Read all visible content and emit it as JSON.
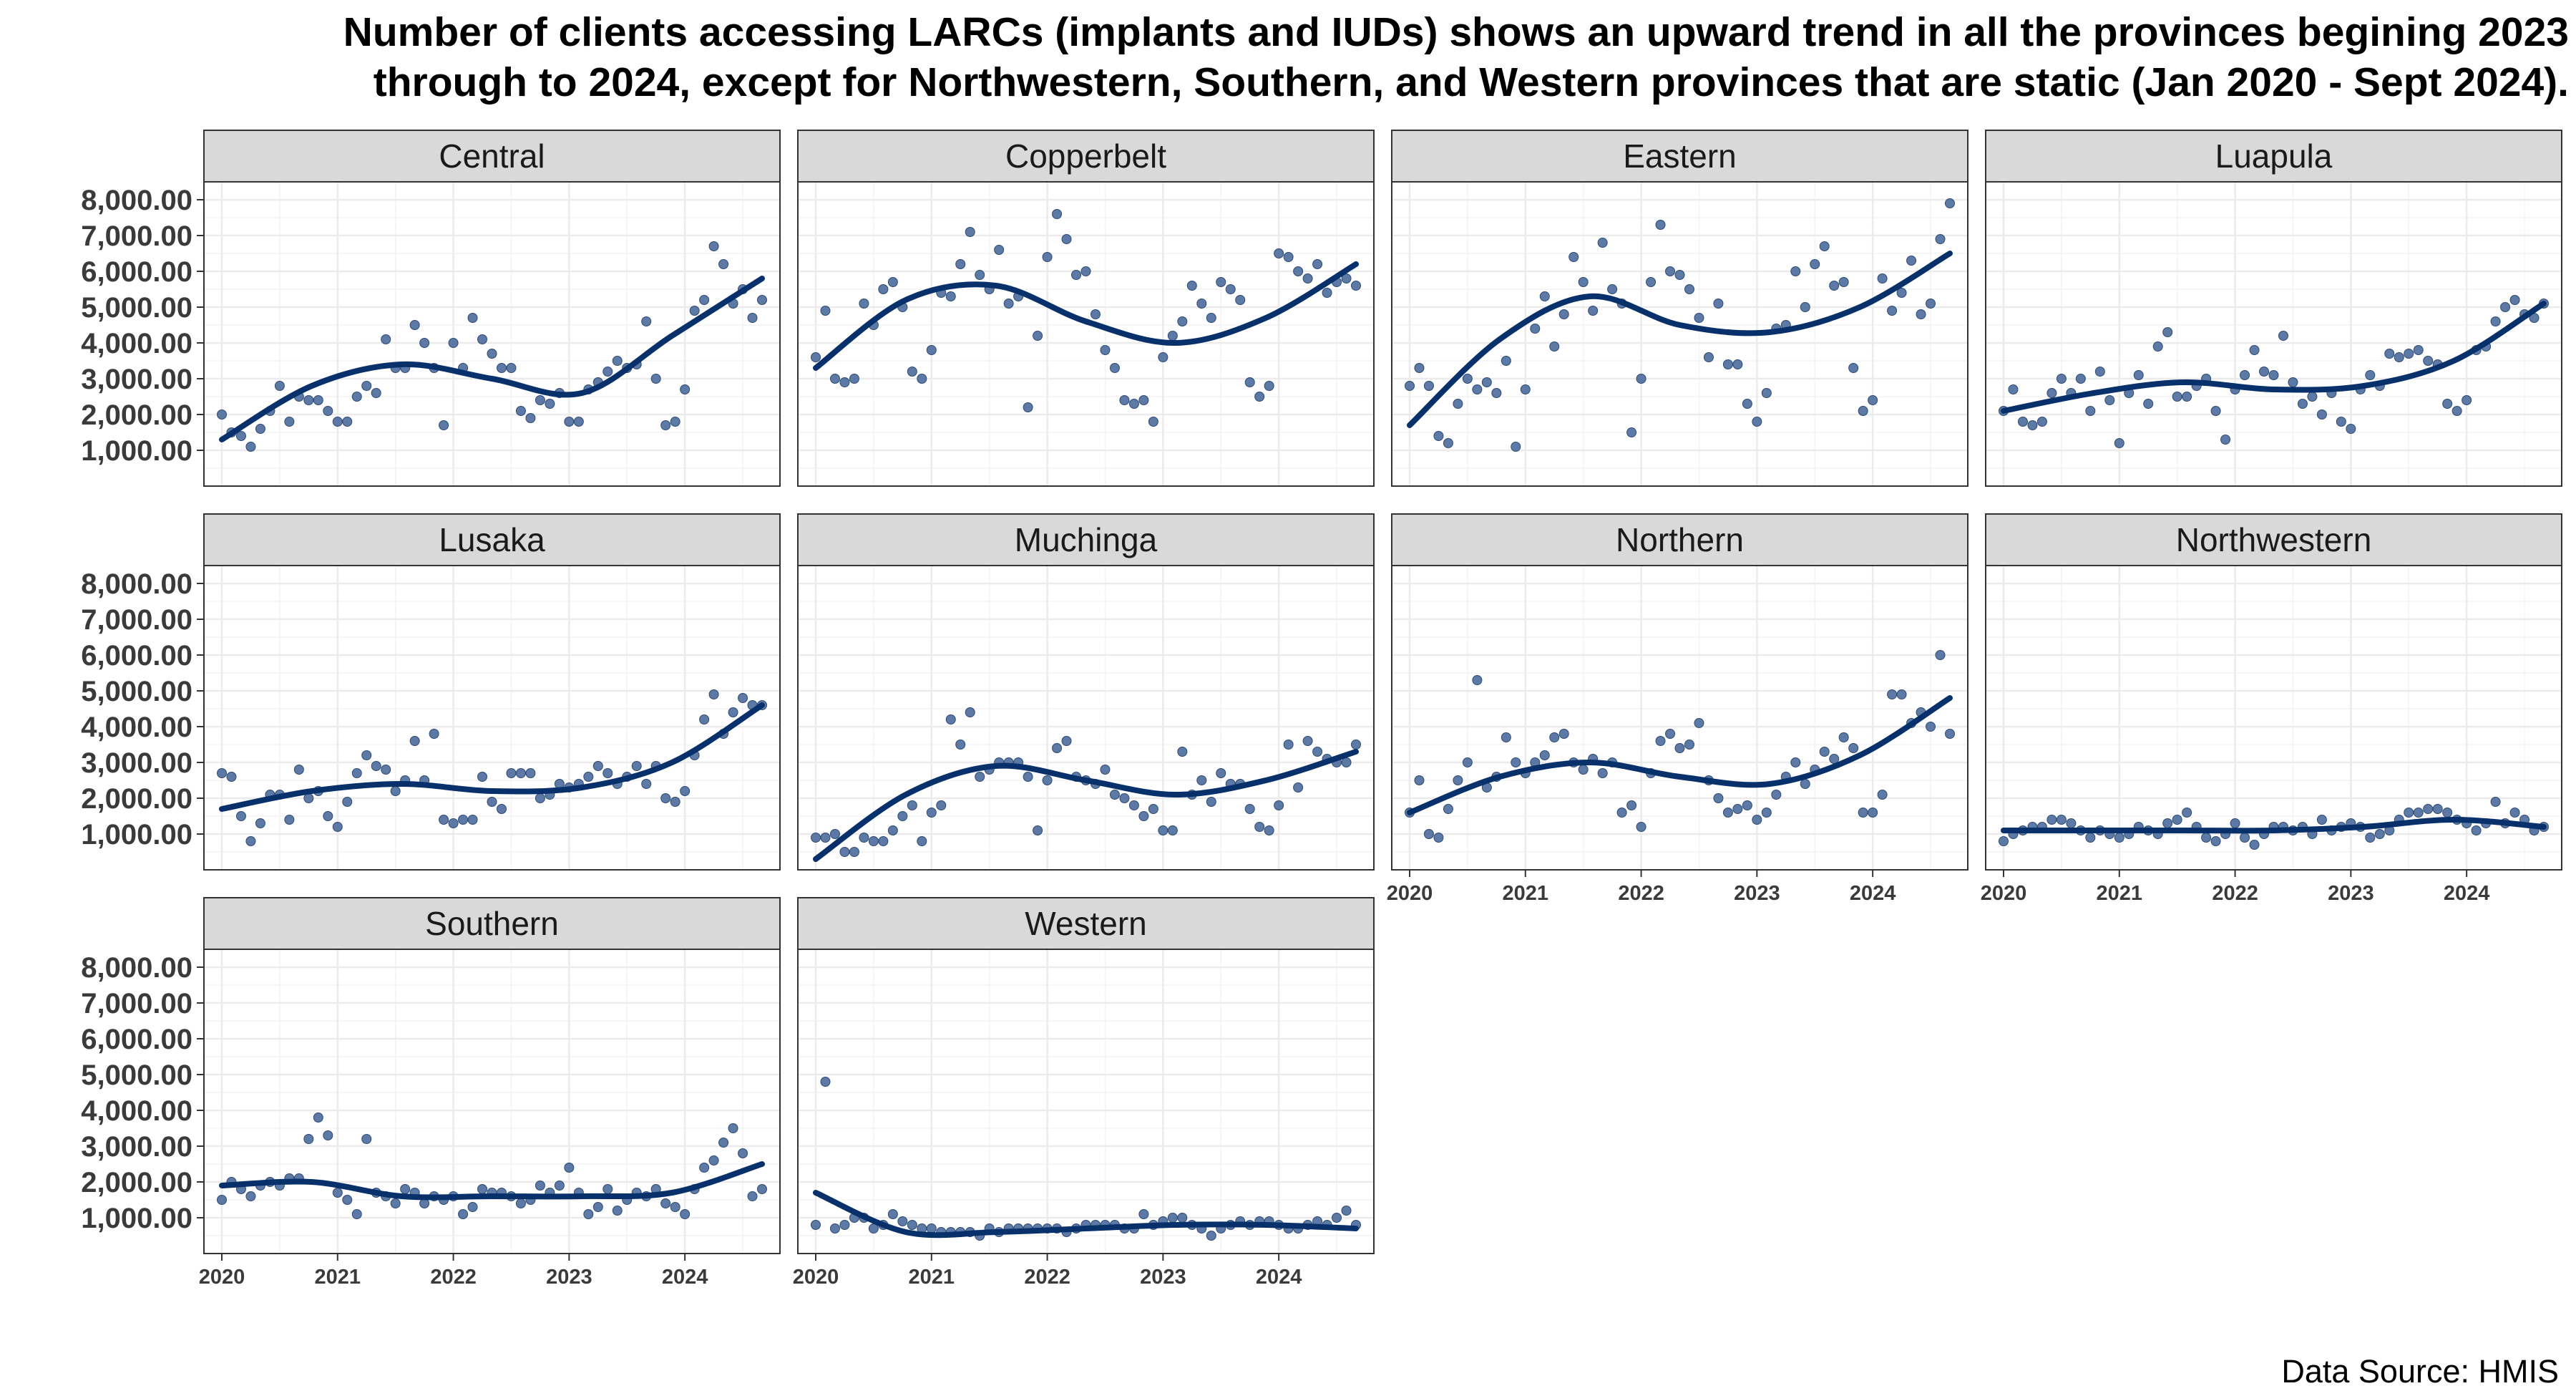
{
  "title": {
    "line1": "Number of clients accessing LARCs (implants and IUDs) shows an upward trend in all the provinces begining 2023",
    "line2": "through to 2024, except for Northwestern, Southern, and Western provinces that are static (Jan 2020 - Sept 2024)."
  },
  "source": "Data Source: HMIS",
  "colors": {
    "point": "#4a6c9b",
    "trend": "#08306b",
    "strip": "#d9d9d9",
    "grid": "#ebebeb"
  },
  "chart_data": {
    "type": "scatter",
    "y_ticks": [
      1000,
      2000,
      3000,
      4000,
      5000,
      6000,
      7000,
      8000
    ],
    "y_tick_labels": [
      "1,000.00",
      "2,000.00",
      "3,000.00",
      "4,000.00",
      "5,000.00",
      "6,000.00",
      "7,000.00",
      "8,000.00"
    ],
    "ylim": [
      0,
      8500
    ],
    "x_ticks": [
      2020,
      2021,
      2022,
      2023,
      2024
    ],
    "x_tick_labels": [
      "2020",
      "2021",
      "2022",
      "2023",
      "2024"
    ],
    "x_start": "2020-01",
    "x_end": "2024-09",
    "grid": true,
    "panels": [
      {
        "name": "Central",
        "values": [
          2000,
          1500,
          1400,
          1100,
          1600,
          2100,
          2800,
          1800,
          2500,
          2400,
          2400,
          2100,
          1800,
          1800,
          2500,
          2800,
          2600,
          4100,
          3300,
          3300,
          4500,
          4000,
          3300,
          1700,
          4000,
          3300,
          4700,
          4100,
          3700,
          3300,
          3300,
          2100,
          1900,
          2400,
          2300,
          2600,
          1800,
          1800,
          2700,
          2900,
          3200,
          3500,
          3300,
          3400,
          4600,
          3000,
          1700,
          1800,
          2700,
          4900,
          5200,
          6700,
          6200,
          5100,
          5500,
          4700,
          5200
        ],
        "trend": [
          1300,
          2800,
          3400,
          3000,
          2600,
          4200,
          5800
        ]
      },
      {
        "name": "Copperbelt",
        "values": [
          3600,
          4900,
          3000,
          2900,
          3000,
          5100,
          4500,
          5500,
          5700,
          5000,
          3200,
          3000,
          3800,
          5400,
          5300,
          6200,
          7100,
          5900,
          5500,
          6600,
          5100,
          5300,
          2200,
          4200,
          6400,
          7600,
          6900,
          5900,
          6000,
          4800,
          3800,
          3300,
          2400,
          2300,
          2400,
          1800,
          3600,
          4200,
          4600,
          5600,
          5100,
          4700,
          5700,
          5500,
          5200,
          2900,
          2500,
          2800,
          6500,
          6400,
          6000,
          5800,
          6200,
          5400,
          5700,
          5800,
          5600
        ],
        "trend": [
          3300,
          5200,
          5600,
          4600,
          4000,
          4700,
          6200
        ]
      },
      {
        "name": "Eastern",
        "values": [
          2800,
          3300,
          2800,
          1400,
          1200,
          2300,
          3000,
          2700,
          2900,
          2600,
          3500,
          1100,
          2700,
          4400,
          5300,
          3900,
          4800,
          6400,
          5700,
          4900,
          6800,
          5500,
          5100,
          1500,
          3000,
          5700,
          7300,
          6000,
          5900,
          5500,
          4700,
          3600,
          5100,
          3400,
          3400,
          2300,
          1800,
          2600,
          4400,
          4500,
          6000,
          5000,
          6200,
          6700,
          5600,
          5700,
          3300,
          2100,
          2400,
          5800,
          4900,
          5400,
          6300,
          4800,
          5100,
          6900,
          7900
        ],
        "trend": [
          1700,
          4100,
          5300,
          4500,
          4300,
          5000,
          6500
        ]
      },
      {
        "name": "Luapula",
        "values": [
          2100,
          2700,
          1800,
          1700,
          1800,
          2600,
          3000,
          2600,
          3000,
          2100,
          3200,
          2400,
          1200,
          2600,
          3100,
          2300,
          3900,
          4300,
          2500,
          2500,
          2800,
          3000,
          2100,
          1300,
          2700,
          3100,
          3800,
          3200,
          3100,
          4200,
          2900,
          2300,
          2500,
          2000,
          2600,
          1800,
          1600,
          2700,
          3100,
          2800,
          3700,
          3600,
          3700,
          3800,
          3500,
          3400,
          2300,
          2100,
          2400,
          3800,
          3900,
          4600,
          5000,
          5200,
          4800,
          4700,
          5100
        ],
        "trend": [
          2100,
          2600,
          2900,
          2700,
          2800,
          3500,
          5100
        ]
      },
      {
        "name": "Lusaka",
        "values": [
          2700,
          2600,
          1500,
          800,
          1300,
          2100,
          2100,
          1400,
          2800,
          2000,
          2200,
          1500,
          1200,
          1900,
          2700,
          3200,
          2900,
          2800,
          2200,
          2500,
          3600,
          2500,
          3800,
          1400,
          1300,
          1400,
          1400,
          2600,
          1900,
          1700,
          2700,
          2700,
          2700,
          2000,
          2100,
          2400,
          2300,
          2400,
          2600,
          2900,
          2700,
          2400,
          2600,
          2900,
          2400,
          2900,
          2000,
          1900,
          2200,
          3200,
          4200,
          4900,
          3800,
          4400,
          4800,
          4600,
          4600
        ],
        "trend": [
          1700,
          2200,
          2400,
          2200,
          2300,
          3000,
          4600
        ]
      },
      {
        "name": "Muchinga",
        "values": [
          900,
          900,
          1000,
          500,
          500,
          900,
          800,
          800,
          1100,
          1500,
          1800,
          800,
          1600,
          1800,
          4200,
          3500,
          4400,
          2600,
          2800,
          3000,
          3000,
          3000,
          2600,
          1100,
          2500,
          3400,
          3600,
          2600,
          2500,
          2400,
          2800,
          2100,
          2000,
          1800,
          1500,
          1700,
          1100,
          1100,
          3300,
          2100,
          2500,
          1900,
          2700,
          2400,
          2400,
          1700,
          1200,
          1100,
          1800,
          3500,
          2300,
          3600,
          3300,
          3100,
          3000,
          3000,
          3500
        ],
        "trend": [
          300,
          2100,
          2900,
          2500,
          2100,
          2500,
          3300
        ]
      },
      {
        "name": "Northern",
        "values": [
          1600,
          2500,
          1000,
          900,
          1700,
          2500,
          3000,
          5300,
          2300,
          2600,
          3700,
          3000,
          2700,
          3000,
          3200,
          3700,
          3800,
          3000,
          2800,
          3100,
          2700,
          3000,
          1600,
          1800,
          1200,
          2700,
          3600,
          3800,
          3400,
          3500,
          4100,
          2500,
          2000,
          1600,
          1700,
          1800,
          1400,
          1600,
          2100,
          2600,
          3000,
          2400,
          2800,
          3300,
          3100,
          3700,
          3400,
          1600,
          1600,
          2100,
          4900,
          4900,
          4100,
          4400,
          4000,
          6000,
          3800
        ],
        "trend": [
          1600,
          2600,
          3000,
          2600,
          2400,
          3200,
          4800
        ]
      },
      {
        "name": "Northwestern",
        "values": [
          800,
          1000,
          1100,
          1200,
          1200,
          1400,
          1400,
          1300,
          1100,
          900,
          1100,
          1000,
          900,
          1000,
          1200,
          1100,
          1000,
          1300,
          1400,
          1600,
          1200,
          900,
          800,
          1000,
          1300,
          900,
          700,
          1000,
          1200,
          1200,
          1100,
          1200,
          1000,
          1400,
          1100,
          1200,
          1300,
          1200,
          900,
          1000,
          1100,
          1400,
          1600,
          1600,
          1700,
          1700,
          1600,
          1400,
          1300,
          1100,
          1300,
          1900,
          1300,
          1600,
          1400,
          1100,
          1200
        ],
        "trend": [
          1100,
          1100,
          1100,
          1100,
          1200,
          1400,
          1200
        ]
      },
      {
        "name": "Southern",
        "values": [
          1500,
          2000,
          1800,
          1600,
          1900,
          2000,
          1900,
          2100,
          2100,
          3200,
          3800,
          3300,
          1700,
          1500,
          1100,
          3200,
          1700,
          1600,
          1400,
          1800,
          1700,
          1400,
          1600,
          1500,
          1600,
          1100,
          1300,
          1800,
          1700,
          1700,
          1600,
          1400,
          1500,
          1900,
          1700,
          1900,
          2400,
          1700,
          1100,
          1300,
          1800,
          1200,
          1500,
          1700,
          1600,
          1800,
          1400,
          1300,
          1100,
          1800,
          2400,
          2600,
          3100,
          3500,
          2800,
          1600,
          1800
        ],
        "trend": [
          1900,
          2000,
          1600,
          1600,
          1600,
          1700,
          2500
        ]
      },
      {
        "name": "Western",
        "values": [
          800,
          4800,
          700,
          800,
          1000,
          1000,
          700,
          800,
          1100,
          900,
          800,
          700,
          700,
          600,
          600,
          600,
          600,
          500,
          700,
          600,
          700,
          700,
          700,
          700,
          700,
          700,
          600,
          700,
          800,
          800,
          800,
          800,
          700,
          700,
          1100,
          800,
          900,
          1000,
          1000,
          800,
          700,
          500,
          700,
          800,
          900,
          800,
          900,
          900,
          800,
          700,
          700,
          800,
          900,
          800,
          1000,
          1200,
          800
        ],
        "trend": [
          1700,
          600,
          600,
          700,
          800,
          800,
          700
        ]
      }
    ]
  }
}
